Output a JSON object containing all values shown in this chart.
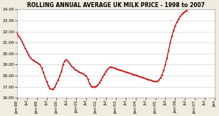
{
  "title": "ROLLING ANNUAL AVERAGE UK MILK PRICE - 1998 to 2007",
  "ylim": [
    16.0,
    24.0
  ],
  "yticks": [
    16.0,
    17.0,
    18.0,
    19.0,
    20.0,
    21.0,
    22.0,
    23.0,
    24.0
  ],
  "line_color": "#cc0000",
  "marker_color": "#cc0000",
  "background_color": "#f0ece0",
  "plot_bg_color": "#ffffff",
  "title_fontsize": 5.5,
  "tick_fontsize": 4.2,
  "values": [
    21.85,
    21.6,
    21.4,
    21.1,
    20.8,
    20.5,
    20.2,
    19.9,
    19.65,
    19.5,
    19.4,
    19.3,
    19.2,
    19.1,
    19.0,
    18.7,
    18.3,
    17.9,
    17.5,
    17.1,
    16.85,
    16.78,
    16.82,
    17.0,
    17.3,
    17.65,
    18.0,
    18.4,
    19.0,
    19.35,
    19.45,
    19.3,
    19.1,
    18.9,
    18.75,
    18.6,
    18.5,
    18.4,
    18.3,
    18.25,
    18.2,
    18.1,
    18.0,
    17.7,
    17.3,
    17.05,
    17.0,
    17.0,
    17.05,
    17.15,
    17.35,
    17.6,
    17.9,
    18.15,
    18.4,
    18.6,
    18.75,
    18.8,
    18.75,
    18.7,
    18.65,
    18.6,
    18.55,
    18.5,
    18.45,
    18.4,
    18.35,
    18.3,
    18.25,
    18.2,
    18.15,
    18.1,
    18.05,
    18.0,
    17.95,
    17.9,
    17.85,
    17.8,
    17.75,
    17.7,
    17.65,
    17.6,
    17.55,
    17.5,
    17.48,
    17.5,
    17.6,
    17.8,
    18.1,
    18.5,
    19.0,
    19.6,
    20.3,
    21.0,
    21.6,
    22.1,
    22.5,
    22.85,
    23.1,
    23.35,
    23.55,
    23.7,
    23.82,
    23.9
  ],
  "xtick_positions": [
    0,
    6,
    12,
    18,
    24,
    30,
    36,
    42,
    48,
    54,
    60,
    66,
    72,
    78,
    84,
    90,
    96,
    102,
    108,
    114,
    120
  ],
  "xtick_labels": [
    "Jan-98",
    "Jul",
    "Jan-99",
    "Jul",
    "Jan-00",
    "Jul",
    "Jan-01",
    "Jul",
    "Jan-02",
    "Jul",
    "Jan-03",
    "Jul",
    "Jan-04",
    "Jul",
    "Jan-05",
    "Jul",
    "Jan-06",
    "Jul",
    "Jan-07",
    "Jul",
    "Jan"
  ]
}
